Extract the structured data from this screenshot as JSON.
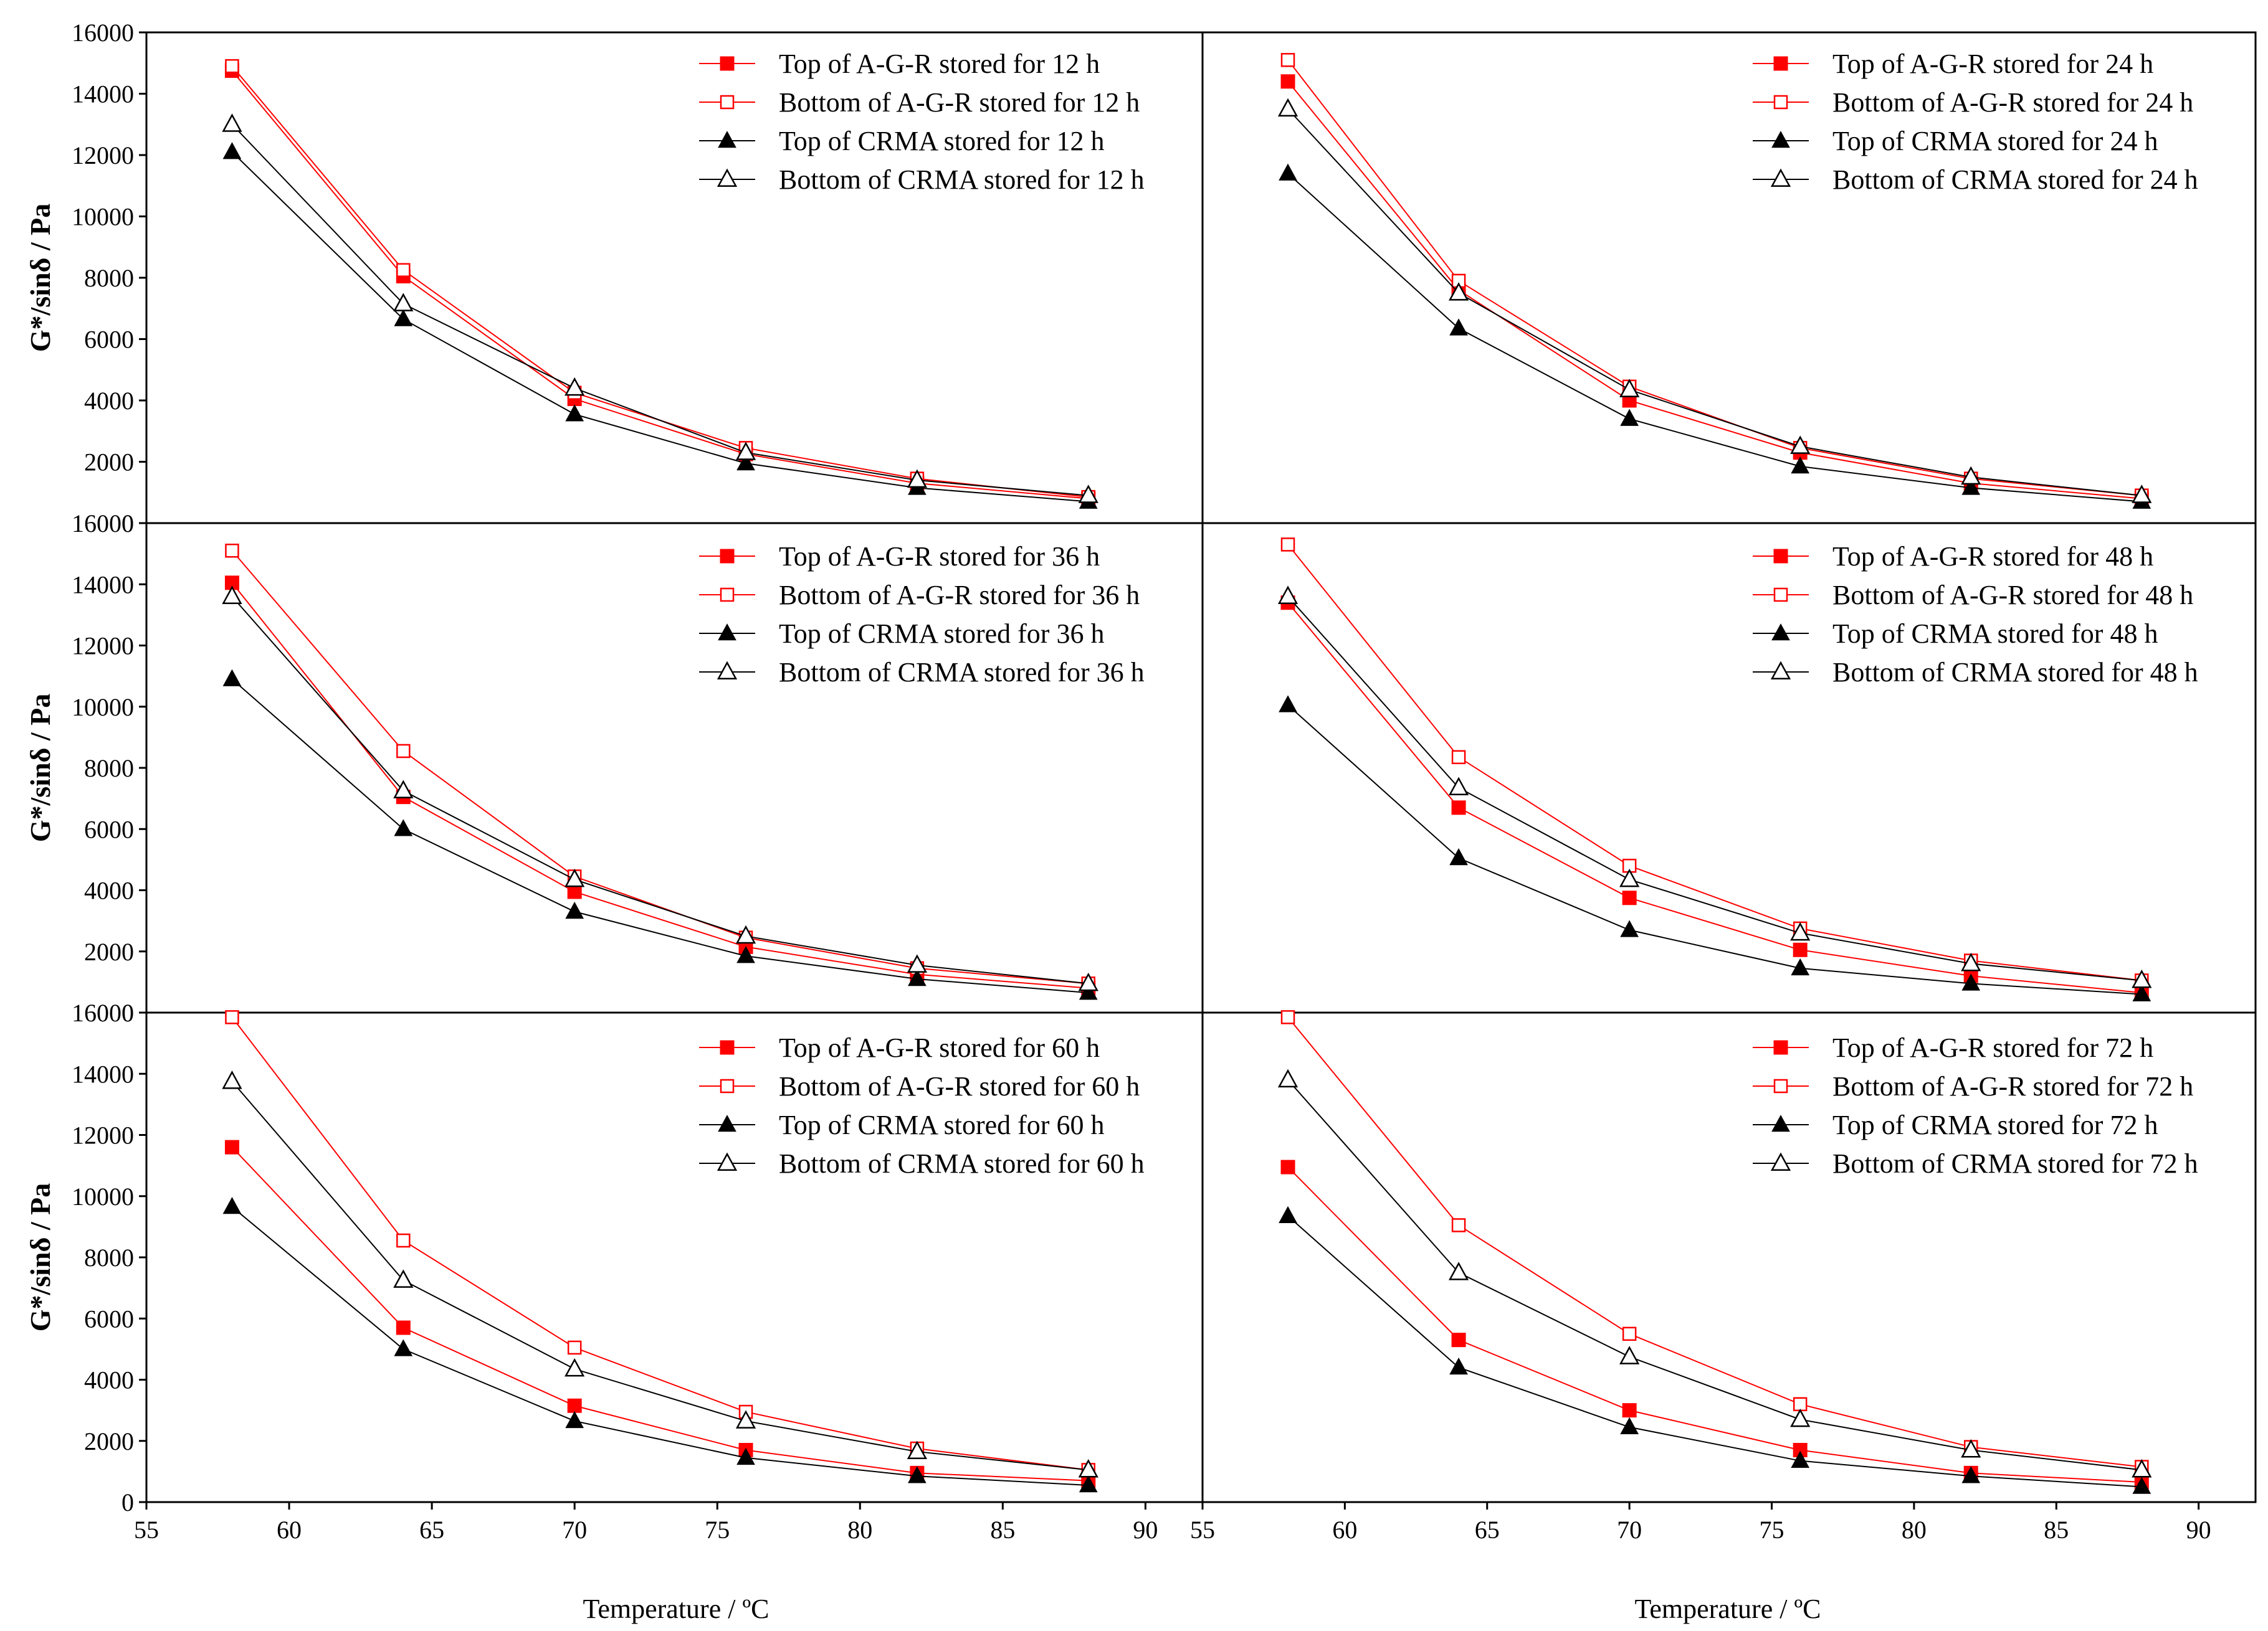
{
  "figure": {
    "xlabel": "Temperature / ºC",
    "ylabel": "G*/sinδ / Pa"
  },
  "colors": {
    "agr": "#ff0000",
    "crma": "#000000",
    "hollow_fill": "#ffffff"
  },
  "chart_data": [
    {
      "type": "line",
      "xlabel": "Temperature / ºC",
      "ylabel": "G*/sinδ / Pa",
      "x": [
        58,
        64,
        70,
        76,
        82,
        88
      ],
      "xlim": [
        55,
        92
      ],
      "ylim": [
        0,
        16000
      ],
      "legend": "top-right",
      "grid": false,
      "series": [
        {
          "name": "Top of A-G-R stored for 12 h",
          "values": [
            14750,
            8050,
            4050,
            2250,
            1300,
            800
          ],
          "marker": "square-filled",
          "color": "#ff0000"
        },
        {
          "name": "Bottom of A-G-R stored for 12 h",
          "values": [
            14900,
            8250,
            4250,
            2450,
            1450,
            850
          ],
          "marker": "square-open",
          "color": "#ff0000"
        },
        {
          "name": "Top of CRMA stored for 12 h",
          "values": [
            12100,
            6650,
            3550,
            1950,
            1150,
            700
          ],
          "marker": "triangle-filled",
          "color": "#000000"
        },
        {
          "name": "Bottom of CRMA stored for 12 h",
          "values": [
            13000,
            7150,
            4400,
            2300,
            1400,
            900
          ],
          "marker": "triangle-open",
          "color": "#000000"
        }
      ]
    },
    {
      "type": "line",
      "xlabel": "Temperature / ºC",
      "ylabel": "G*/sinδ / Pa",
      "x": [
        58,
        64,
        70,
        76,
        82,
        88
      ],
      "xlim": [
        55,
        92
      ],
      "ylim": [
        0,
        16000
      ],
      "legend": "top-right",
      "grid": false,
      "series": [
        {
          "name": "Top of A-G-R stored for 24 h",
          "values": [
            14400,
            7600,
            4000,
            2300,
            1300,
            800
          ],
          "marker": "square-filled",
          "color": "#ff0000"
        },
        {
          "name": "Bottom of A-G-R stored for 24 h",
          "values": [
            15100,
            7900,
            4450,
            2450,
            1450,
            900
          ],
          "marker": "square-open",
          "color": "#ff0000"
        },
        {
          "name": "Top of CRMA stored for 24 h",
          "values": [
            11400,
            6350,
            3400,
            1850,
            1150,
            700
          ],
          "marker": "triangle-filled",
          "color": "#000000"
        },
        {
          "name": "Bottom of CRMA stored for 24 h",
          "values": [
            13500,
            7500,
            4350,
            2500,
            1500,
            900
          ],
          "marker": "triangle-open",
          "color": "#000000"
        }
      ]
    },
    {
      "type": "line",
      "xlabel": "Temperature / ºC",
      "ylabel": "G*/sinδ / Pa",
      "x": [
        58,
        64,
        70,
        76,
        82,
        88
      ],
      "xlim": [
        55,
        92
      ],
      "ylim": [
        0,
        16000
      ],
      "legend": "top-right",
      "grid": false,
      "series": [
        {
          "name": "Top of A-G-R stored for 36 h",
          "values": [
            14050,
            7050,
            3950,
            2150,
            1250,
            800
          ],
          "marker": "square-filled",
          "color": "#ff0000"
        },
        {
          "name": "Bottom of A-G-R stored for 36 h",
          "values": [
            15100,
            8550,
            4450,
            2450,
            1450,
            950
          ],
          "marker": "square-open",
          "color": "#ff0000"
        },
        {
          "name": "Top of CRMA stored for 36 h",
          "values": [
            10900,
            6000,
            3300,
            1850,
            1100,
            650
          ],
          "marker": "triangle-filled",
          "color": "#000000"
        },
        {
          "name": "Bottom of CRMA stored for 36 h",
          "values": [
            13600,
            7250,
            4350,
            2500,
            1550,
            950
          ],
          "marker": "triangle-open",
          "color": "#000000"
        }
      ]
    },
    {
      "type": "line",
      "xlabel": "Temperature / ºC",
      "ylabel": "G*/sinδ / Pa",
      "x": [
        58,
        64,
        70,
        76,
        82,
        88
      ],
      "xlim": [
        55,
        92
      ],
      "ylim": [
        0,
        16000
      ],
      "legend": "top-right",
      "grid": false,
      "series": [
        {
          "name": "Top of A-G-R stored for 48 h",
          "values": [
            13400,
            6700,
            3750,
            2050,
            1200,
            650
          ],
          "marker": "square-filled",
          "color": "#ff0000"
        },
        {
          "name": "Bottom of A-G-R stored for 48 h",
          "values": [
            15300,
            8350,
            4800,
            2750,
            1700,
            1050
          ],
          "marker": "square-open",
          "color": "#ff0000"
        },
        {
          "name": "Top of CRMA stored for 48 h",
          "values": [
            10050,
            5050,
            2700,
            1450,
            950,
            600
          ],
          "marker": "triangle-filled",
          "color": "#000000"
        },
        {
          "name": "Bottom of CRMA stored for 48 h",
          "values": [
            13600,
            7350,
            4350,
            2600,
            1600,
            1050
          ],
          "marker": "triangle-open",
          "color": "#000000"
        }
      ]
    },
    {
      "type": "line",
      "xlabel": "Temperature / ºC",
      "ylabel": "G*/sinδ / Pa",
      "x": [
        58,
        64,
        70,
        76,
        82,
        88
      ],
      "xlim": [
        55,
        92
      ],
      "ylim": [
        0,
        16000
      ],
      "legend": "top-right",
      "grid": false,
      "series": [
        {
          "name": "Top of A-G-R stored for 60 h",
          "values": [
            11600,
            5700,
            3150,
            1700,
            950,
            700
          ],
          "marker": "square-filled",
          "color": "#ff0000"
        },
        {
          "name": "Bottom of A-G-R stored for 60 h",
          "values": [
            15850,
            8550,
            5050,
            2950,
            1750,
            1050
          ],
          "marker": "square-open",
          "color": "#ff0000"
        },
        {
          "name": "Top of CRMA stored for 60 h",
          "values": [
            9650,
            5000,
            2650,
            1450,
            850,
            550
          ],
          "marker": "triangle-filled",
          "color": "#000000"
        },
        {
          "name": "Bottom of CRMA stored for 60 h",
          "values": [
            13750,
            7250,
            4350,
            2650,
            1650,
            1050
          ],
          "marker": "triangle-open",
          "color": "#000000"
        }
      ]
    },
    {
      "type": "line",
      "xlabel": "Temperature / ºC",
      "ylabel": "G*/sinδ / Pa",
      "x": [
        58,
        64,
        70,
        76,
        82,
        88
      ],
      "xlim": [
        55,
        92
      ],
      "ylim": [
        0,
        16000
      ],
      "legend": "top-right",
      "grid": false,
      "series": [
        {
          "name": "Top of A-G-R stored for 72 h",
          "values": [
            10950,
            5300,
            3000,
            1700,
            950,
            650
          ],
          "marker": "square-filled",
          "color": "#ff0000"
        },
        {
          "name": "Bottom of A-G-R stored for 72 h",
          "values": [
            15850,
            9050,
            5500,
            3200,
            1800,
            1150
          ],
          "marker": "square-open",
          "color": "#ff0000"
        },
        {
          "name": "Top of CRMA stored for 72 h",
          "values": [
            9350,
            4400,
            2450,
            1350,
            850,
            500
          ],
          "marker": "triangle-filled",
          "color": "#000000"
        },
        {
          "name": "Bottom of CRMA stored for 72 h",
          "values": [
            13800,
            7500,
            4750,
            2700,
            1700,
            1050
          ],
          "marker": "triangle-open",
          "color": "#000000"
        }
      ]
    }
  ]
}
